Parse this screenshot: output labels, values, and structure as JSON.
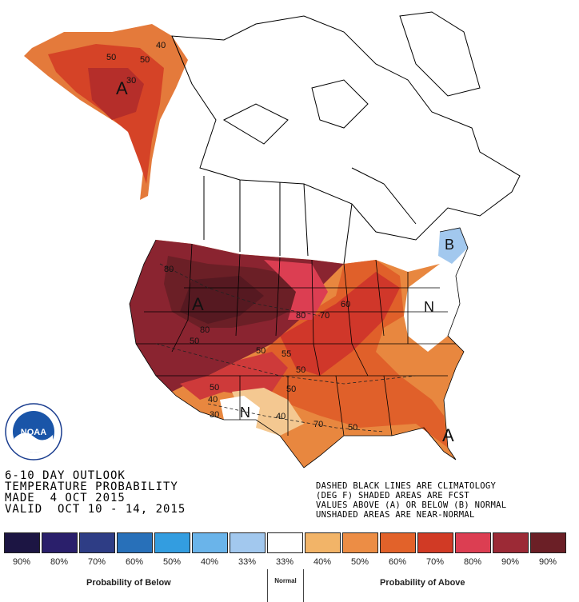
{
  "title_lines": [
    "6-10 DAY OUTLOOK",
    "TEMPERATURE PROBABILITY",
    "MADE  4 OCT 2015",
    "VALID  OCT 10 - 14, 2015"
  ],
  "notes": [
    "DASHED BLACK LINES ARE CLIMATOLOGY",
    "(DEG F) SHADED AREAS ARE FCST",
    "VALUES ABOVE (A) OR BELOW (B) NORMAL",
    "UNSHADED AREAS ARE NEAR-NORMAL"
  ],
  "logo": {
    "text": "NOAA",
    "ring_text": "NATIONAL OCEANIC AND ATMOSPHERIC ADMINISTRATION · U.S. DEPARTMENT OF COMMERCE"
  },
  "legend": {
    "below_title": "Probability of Below",
    "above_title": "Probability of Above",
    "normal_title": "Normal",
    "swatches": [
      {
        "color": "#1c1543",
        "label": "90%"
      },
      {
        "color": "#2a1f6b",
        "label": "80%"
      },
      {
        "color": "#2e3d85",
        "label": "70%"
      },
      {
        "color": "#2870b9",
        "label": "60%"
      },
      {
        "color": "#339de0",
        "label": "50%"
      },
      {
        "color": "#6ab4ea",
        "label": "40%"
      },
      {
        "color": "#a2c8ee",
        "label": "33%"
      },
      {
        "color": "#ffffff",
        "label": "33%"
      },
      {
        "color": "#f2b468",
        "label": "40%"
      },
      {
        "color": "#ec8d45",
        "label": "50%"
      },
      {
        "color": "#e2622a",
        "label": "60%"
      },
      {
        "color": "#d13a25",
        "label": "70%"
      },
      {
        "color": "#dc3e52",
        "label": "80%"
      },
      {
        "color": "#9c2a36",
        "label": "90%"
      },
      {
        "color": "#6b1f26",
        "label": "90%"
      }
    ]
  },
  "map_labels": {
    "alaska_a": "A",
    "west_a": "A",
    "se_a": "A",
    "ne_b": "B",
    "ne_n": "N",
    "sw_n": "N",
    "contours": [
      "50",
      "50",
      "40",
      "30",
      "80",
      "80",
      "50",
      "80",
      "70",
      "60",
      "50",
      "55",
      "50",
      "50",
      "40",
      "30",
      "50",
      "40",
      "70",
      "50"
    ]
  }
}
